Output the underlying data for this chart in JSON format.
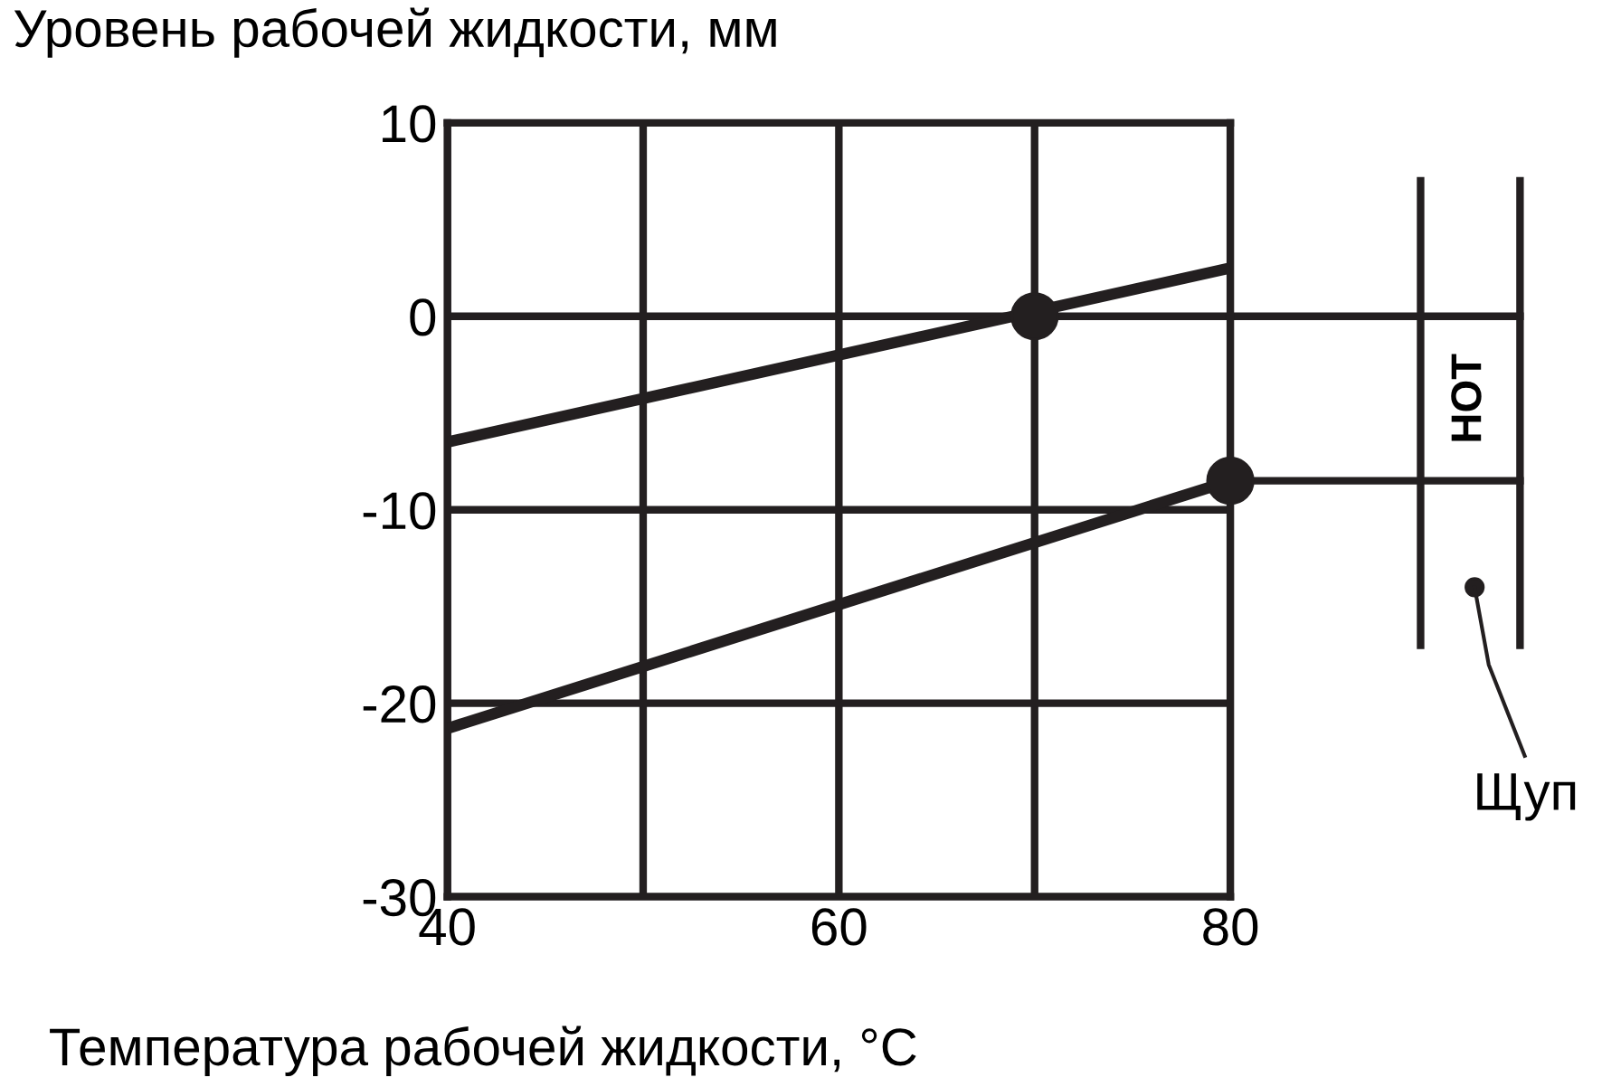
{
  "chart_data": {
    "type": "line",
    "title": "Уровень рабочей жидкости, мм",
    "xlabel": "Температура рабочей жидкости, °С",
    "series": [
      {
        "color": "#231f20",
        "x": [
          40,
          80
        ],
        "values": [
          -6.5,
          2.5
        ]
      },
      {
        "color": "#231f20",
        "x": [
          40,
          80
        ],
        "values": [
          -21.3,
          -8.5
        ]
      },
      {
        "type": "scatter",
        "marker": "circle",
        "color": "#231f20",
        "x": [
          70
        ],
        "values": [
          0
        ]
      },
      {
        "type": "scatter",
        "marker": "circle",
        "color": "#231f20",
        "x": [
          80
        ],
        "values": [
          -8.5
        ]
      }
    ],
    "xlim": [
      40,
      80
    ],
    "xticks": [
      40,
      {
        "value": 50,
        "label": null
      },
      60,
      {
        "value": 70,
        "label": null
      },
      80
    ],
    "ylim": [
      -30,
      10
    ],
    "yticks": [
      -30,
      -20,
      -10,
      0,
      10
    ],
    "grid": true,
    "line_style": "solid",
    "annotations": [
      "HOT",
      "Щуп"
    ]
  }
}
